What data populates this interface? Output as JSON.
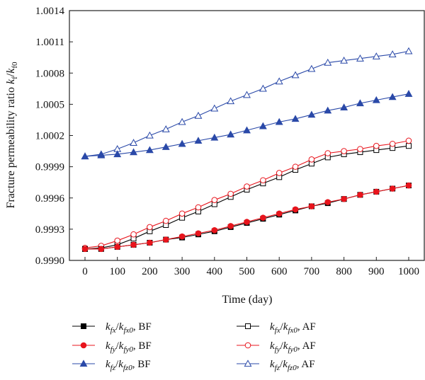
{
  "chart_data": {
    "type": "line",
    "title": "",
    "xlabel": "Time (day)",
    "ylabel": "Fracture permeability ratio k_f/k_f0",
    "xlim": [
      0,
      1000
    ],
    "ylim": [
      0.999,
      1.0014
    ],
    "x_ticks": [
      0,
      100,
      200,
      300,
      400,
      500,
      600,
      700,
      800,
      900,
      1000
    ],
    "x_tick_labels": [
      "0",
      "100",
      "200",
      "300",
      "400",
      "500",
      "600",
      "700",
      "800",
      "900",
      "1000"
    ],
    "y_ticks": [
      0.999,
      0.9993,
      0.9996,
      0.9999,
      1.0002,
      1.0005,
      1.0008,
      1.0011,
      1.0014
    ],
    "y_tick_labels": [
      "0.9990",
      "0.9993",
      "0.9996",
      "0.9999",
      "1.0002",
      "1.0005",
      "1.0008",
      "1.0011",
      "1.0014"
    ],
    "grid": false,
    "legend_position": "bottom",
    "x": [
      0,
      50,
      100,
      150,
      200,
      250,
      300,
      350,
      400,
      450,
      500,
      550,
      600,
      650,
      700,
      750,
      800,
      850,
      900,
      950,
      1000
    ],
    "series": [
      {
        "name": "kfx/kfx0, BF",
        "color": "#000000",
        "marker": "square",
        "filled": true,
        "values": [
          0.99911,
          0.99911,
          0.99913,
          0.99915,
          0.99917,
          0.9992,
          0.99922,
          0.99925,
          0.99928,
          0.99932,
          0.99936,
          0.9994,
          0.99944,
          0.99948,
          0.99952,
          0.99955,
          0.99959,
          0.99963,
          0.99966,
          0.99969,
          0.99972
        ]
      },
      {
        "name": "kfy/kfy0, BF",
        "color": "#e8141c",
        "marker": "circle",
        "filled": true,
        "values": [
          0.99911,
          0.99911,
          0.99913,
          0.99915,
          0.99917,
          0.9992,
          0.99923,
          0.99926,
          0.99929,
          0.99933,
          0.99937,
          0.99941,
          0.99945,
          0.99949,
          0.99952,
          0.99956,
          0.99959,
          0.99963,
          0.99966,
          0.99969,
          0.99972
        ]
      },
      {
        "name": "kfz/kfz0, BF",
        "color": "#2a49a8",
        "marker": "triangle",
        "filled": true,
        "values": [
          1.0,
          1.00001,
          1.00002,
          1.00004,
          1.00006,
          1.00009,
          1.00012,
          1.00015,
          1.00018,
          1.00021,
          1.00025,
          1.00029,
          1.00033,
          1.00036,
          1.0004,
          1.00044,
          1.00047,
          1.00051,
          1.00054,
          1.00057,
          1.0006
        ]
      },
      {
        "name": "kfx/kfx0, AF",
        "color": "#000000",
        "marker": "square",
        "filled": false,
        "values": [
          0.99911,
          0.99912,
          0.99915,
          0.99921,
          0.99928,
          0.99934,
          0.99941,
          0.99947,
          0.99954,
          0.99961,
          0.99968,
          0.99974,
          0.9998,
          0.99987,
          0.99993,
          0.99999,
          1.00002,
          1.00004,
          1.00006,
          1.00008,
          1.0001
        ]
      },
      {
        "name": "kfy/kfy0, AF",
        "color": "#e8141c",
        "marker": "circle",
        "filled": false,
        "values": [
          0.99912,
          0.99914,
          0.99919,
          0.99925,
          0.99932,
          0.99938,
          0.99945,
          0.99951,
          0.99958,
          0.99964,
          0.99971,
          0.99977,
          0.99984,
          0.9999,
          0.99997,
          1.00003,
          1.00005,
          1.00007,
          1.0001,
          1.00012,
          1.00015
        ]
      },
      {
        "name": "kfz/kfz0, AF",
        "color": "#2a49a8",
        "marker": "triangle",
        "filled": false,
        "values": [
          1.0,
          1.00002,
          1.00007,
          1.00013,
          1.0002,
          1.00026,
          1.00033,
          1.00039,
          1.00046,
          1.00053,
          1.00059,
          1.00065,
          1.00072,
          1.00078,
          1.00084,
          1.0009,
          1.00092,
          1.00094,
          1.00096,
          1.00098,
          1.00101
        ]
      }
    ],
    "legend": [
      {
        "num_sub": "fx",
        "den_sub": "fx0",
        "tag": ", BF"
      },
      {
        "num_sub": "fx",
        "den_sub": "fx0",
        "tag": ", AF"
      },
      {
        "num_sub": "fy",
        "den_sub": "fy0",
        "tag": ", BF"
      },
      {
        "num_sub": "fy",
        "den_sub": "fy0",
        "tag": ", AF"
      },
      {
        "num_sub": "fz",
        "den_sub": "fz0",
        "tag": ", BF"
      },
      {
        "num_sub": "fz",
        "den_sub": "fz0",
        "tag": ", AF"
      }
    ]
  }
}
